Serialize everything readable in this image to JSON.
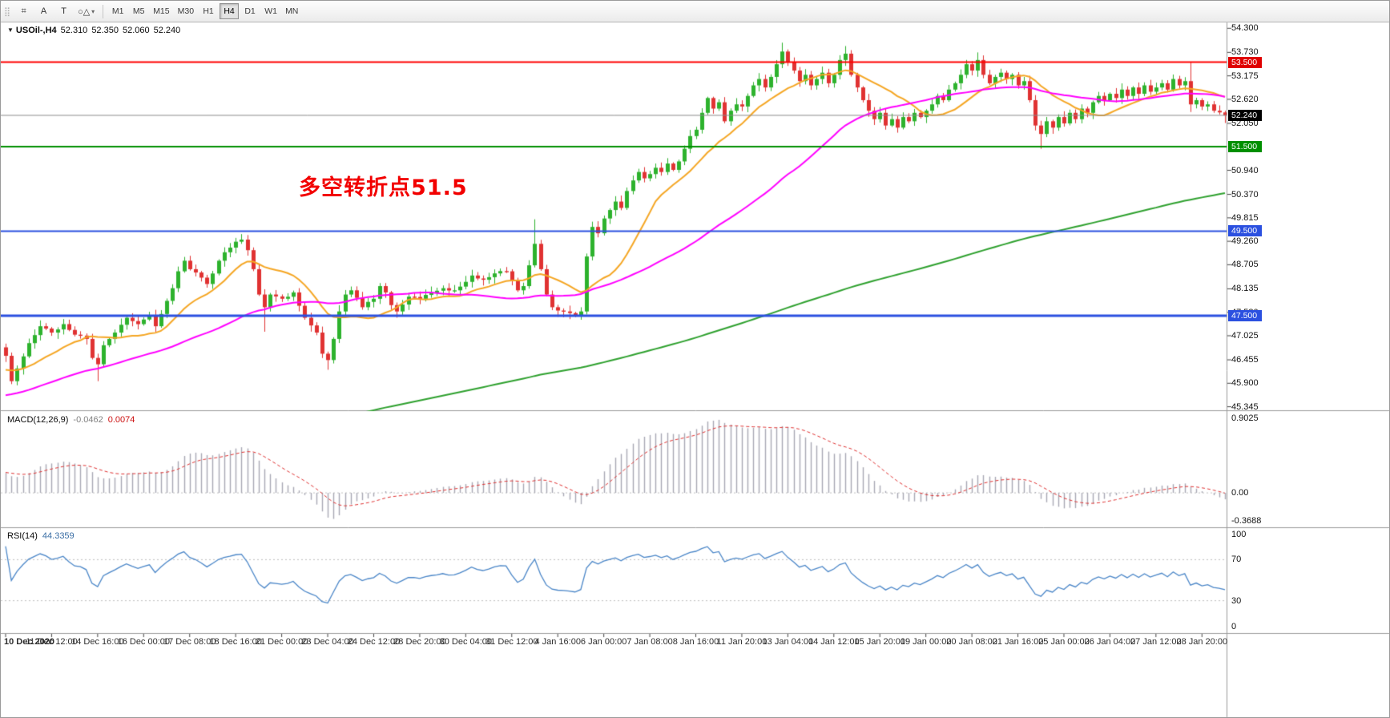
{
  "toolbar": {
    "drag_handle_glyph": "⣿",
    "buttons": [
      {
        "name": "grid-tool-button",
        "glyph": "⌗"
      },
      {
        "name": "label-tool-button",
        "glyph": "A"
      },
      {
        "name": "text-tool-button",
        "glyph": "T"
      },
      {
        "name": "shapes-tool-button",
        "glyph": "○△",
        "caret": "▾"
      }
    ],
    "timeframes": [
      "M1",
      "M5",
      "M15",
      "M30",
      "H1",
      "H4",
      "D1",
      "W1",
      "MN"
    ],
    "active_timeframe": "H4"
  },
  "chart": {
    "symbol_header": "USOil-,H4",
    "ohlc": {
      "open": "52.310",
      "high": "52.350",
      "low": "52.060",
      "close": "52.240"
    },
    "current_price": "52.240",
    "price_ticks": [
      "54.300",
      "53.730",
      "53.175",
      "52.620",
      "52.050",
      "50.940",
      "50.370",
      "49.815",
      "49.260",
      "48.705",
      "48.135",
      "47.580",
      "47.025",
      "46.455",
      "45.900",
      "45.345"
    ],
    "badges": [
      {
        "text": "53.500",
        "value": 53.5,
        "bg": "#e00000"
      },
      {
        "text": "52.240",
        "value": 52.24,
        "bg": "#000000"
      },
      {
        "text": "51.500",
        "value": 51.5,
        "bg": "#008f00"
      },
      {
        "text": "49.500",
        "value": 49.5,
        "bg": "#2b50e0"
      },
      {
        "text": "47.500",
        "value": 47.5,
        "bg": "#2b50e0"
      }
    ],
    "annotation": {
      "text": "多空转折点51.5",
      "color": "#f20000"
    }
  },
  "macd": {
    "label": "MACD(12,26,9)",
    "main_value": "-0.0462",
    "signal_value": "0.0074",
    "axis": [
      "0.9025",
      "0.00",
      "-0.3688"
    ]
  },
  "rsi": {
    "label": "RSI(14)",
    "value": "44.3359",
    "axis": [
      "100",
      "70",
      "30",
      "0"
    ],
    "levels": [
      70,
      30
    ]
  },
  "time_axis": [
    "10 Dec 2020",
    "11 Dec 12:00",
    "14 Dec 16:00",
    "16 Dec 00:00",
    "17 Dec 08:00",
    "18 Dec 16:00",
    "21 Dec 00:00",
    "23 Dec 04:00",
    "24 Dec 12:00",
    "28 Dec 20:00",
    "30 Dec 04:00",
    "31 Dec 12:00",
    "4 Jan 16:00",
    "6 Jan 00:00",
    "7 Jan 08:00",
    "8 Jan 16:00",
    "11 Jan 20:00",
    "13 Jan 04:00",
    "14 Jan 12:00",
    "15 Jan 20:00",
    "19 Jan 00:00",
    "20 Jan 08:00",
    "21 Jan 16:00",
    "25 Jan 00:00",
    "26 Jan 04:00",
    "27 Jan 12:00",
    "28 Jan 20:00"
  ],
  "palette": {
    "candle_up": "#2db22d",
    "candle_down": "#e03232",
    "price_line": "#8a8a8a",
    "macd_bar": "#a8a8b4",
    "macd_signal": "#e03030",
    "rsi_line": "#4a86c8",
    "level_dotted": "#c0c0c0"
  },
  "chart_data": {
    "type": "candlestick",
    "symbol": "USOil",
    "timeframe": "H4",
    "num_candles": 213,
    "first_open": 46.75,
    "visible_price_range": [
      45.345,
      54.3
    ],
    "current_ohlc": [
      52.31,
      52.35,
      52.06,
      52.24
    ],
    "horizontal_lines": [
      {
        "price": 53.5,
        "color": "#ff0000",
        "width": 2
      },
      {
        "price": 51.5,
        "color": "#008f00",
        "width": 2
      },
      {
        "price": 49.5,
        "color": "#2b50e0",
        "width": 2
      },
      {
        "price": 47.5,
        "color": "#2b50e0",
        "width": 3
      }
    ],
    "moving_averages": [
      {
        "period": 13,
        "color": "#f5a623"
      },
      {
        "period": 45,
        "color": "#ff00ff"
      },
      {
        "period": 200,
        "color": "#2fa12f"
      }
    ],
    "indicators": [
      {
        "name": "MACD",
        "params": [
          12,
          26,
          9
        ],
        "last_values": [
          -0.0462,
          0.0074
        ],
        "axis_range": [
          -0.3688,
          0.9025
        ]
      },
      {
        "name": "RSI",
        "params": [
          14
        ],
        "last_value": 44.3359,
        "axis_range": [
          0,
          100
        ],
        "levels": [
          30,
          70
        ]
      }
    ],
    "close_waypoints": [
      [
        0,
        46.55
      ],
      [
        1,
        45.95
      ],
      [
        2,
        46.25
      ],
      [
        4,
        46.85
      ],
      [
        6,
        47.25
      ],
      [
        8,
        47.1
      ],
      [
        10,
        47.3
      ],
      [
        12,
        47.05
      ],
      [
        14,
        46.95
      ],
      [
        15,
        46.5
      ],
      [
        16,
        46.35
      ],
      [
        17,
        46.8
      ],
      [
        19,
        47.1
      ],
      [
        21,
        47.45
      ],
      [
        23,
        47.3
      ],
      [
        25,
        47.5
      ],
      [
        26,
        47.25
      ],
      [
        28,
        47.85
      ],
      [
        29,
        48.15
      ],
      [
        30,
        48.55
      ],
      [
        31,
        48.8
      ],
      [
        32,
        48.6
      ],
      [
        34,
        48.4
      ],
      [
        35,
        48.25
      ],
      [
        37,
        48.8
      ],
      [
        38,
        49.0
      ],
      [
        40,
        49.25
      ],
      [
        41,
        49.3
      ],
      [
        42,
        49.05
      ],
      [
        43,
        48.6
      ],
      [
        44,
        48.0
      ],
      [
        45,
        47.7
      ],
      [
        46,
        48.0
      ],
      [
        48,
        47.9
      ],
      [
        50,
        48.05
      ],
      [
        52,
        47.45
      ],
      [
        54,
        47.1
      ],
      [
        55,
        46.6
      ],
      [
        56,
        46.45
      ],
      [
        57,
        46.95
      ],
      [
        58,
        47.6
      ],
      [
        59,
        48.0
      ],
      [
        60,
        48.1
      ],
      [
        62,
        47.7
      ],
      [
        64,
        47.9
      ],
      [
        65,
        48.2
      ],
      [
        66,
        48.05
      ],
      [
        67,
        47.75
      ],
      [
        68,
        47.6
      ],
      [
        70,
        47.95
      ],
      [
        72,
        47.9
      ],
      [
        74,
        48.05
      ],
      [
        76,
        48.15
      ],
      [
        78,
        48.1
      ],
      [
        80,
        48.3
      ],
      [
        81,
        48.45
      ],
      [
        83,
        48.35
      ],
      [
        85,
        48.5
      ],
      [
        87,
        48.55
      ],
      [
        89,
        48.1
      ],
      [
        90,
        48.2
      ],
      [
        92,
        49.2
      ],
      [
        93,
        48.6
      ],
      [
        94,
        48.0
      ],
      [
        95,
        47.7
      ],
      [
        97,
        47.6
      ],
      [
        99,
        47.5
      ],
      [
        100,
        47.6
      ],
      [
        101,
        48.9
      ],
      [
        102,
        49.6
      ],
      [
        103,
        49.45
      ],
      [
        104,
        49.8
      ],
      [
        105,
        50.0
      ],
      [
        106,
        50.2
      ],
      [
        107,
        50.05
      ],
      [
        108,
        50.45
      ],
      [
        109,
        50.7
      ],
      [
        110,
        50.9
      ],
      [
        111,
        50.75
      ],
      [
        112,
        50.85
      ],
      [
        113,
        51.0
      ],
      [
        114,
        50.9
      ],
      [
        115,
        51.1
      ],
      [
        116,
        50.95
      ],
      [
        117,
        51.15
      ],
      [
        118,
        51.45
      ],
      [
        119,
        51.75
      ],
      [
        120,
        51.9
      ],
      [
        121,
        52.3
      ],
      [
        122,
        52.65
      ],
      [
        123,
        52.4
      ],
      [
        124,
        52.55
      ],
      [
        125,
        52.1
      ],
      [
        126,
        52.35
      ],
      [
        127,
        52.5
      ],
      [
        128,
        52.45
      ],
      [
        129,
        52.7
      ],
      [
        130,
        52.95
      ],
      [
        131,
        53.1
      ],
      [
        132,
        52.9
      ],
      [
        133,
        53.15
      ],
      [
        134,
        53.45
      ],
      [
        135,
        53.75
      ],
      [
        136,
        53.5
      ],
      [
        137,
        53.3
      ],
      [
        138,
        53.05
      ],
      [
        139,
        53.2
      ],
      [
        140,
        52.95
      ],
      [
        141,
        53.1
      ],
      [
        142,
        53.25
      ],
      [
        143,
        53.0
      ],
      [
        144,
        53.2
      ],
      [
        145,
        53.55
      ],
      [
        146,
        53.7
      ],
      [
        147,
        53.2
      ],
      [
        148,
        52.9
      ],
      [
        149,
        52.6
      ],
      [
        150,
        52.35
      ],
      [
        151,
        52.15
      ],
      [
        152,
        52.3
      ],
      [
        153,
        52.0
      ],
      [
        154,
        52.15
      ],
      [
        155,
        51.95
      ],
      [
        156,
        52.2
      ],
      [
        157,
        52.1
      ],
      [
        158,
        52.3
      ],
      [
        159,
        52.2
      ],
      [
        160,
        52.35
      ],
      [
        161,
        52.5
      ],
      [
        162,
        52.7
      ],
      [
        163,
        52.6
      ],
      [
        164,
        52.85
      ],
      [
        165,
        53.0
      ],
      [
        166,
        53.2
      ],
      [
        167,
        53.45
      ],
      [
        168,
        53.3
      ],
      [
        169,
        53.55
      ],
      [
        170,
        53.2
      ],
      [
        171,
        53.0
      ],
      [
        172,
        53.15
      ],
      [
        173,
        53.25
      ],
      [
        174,
        53.1
      ],
      [
        175,
        53.2
      ],
      [
        176,
        52.95
      ],
      [
        177,
        53.05
      ],
      [
        178,
        52.6
      ],
      [
        179,
        52.0
      ],
      [
        180,
        51.8
      ],
      [
        181,
        52.1
      ],
      [
        182,
        51.95
      ],
      [
        183,
        52.2
      ],
      [
        184,
        52.05
      ],
      [
        185,
        52.3
      ],
      [
        186,
        52.15
      ],
      [
        187,
        52.4
      ],
      [
        188,
        52.3
      ],
      [
        189,
        52.55
      ],
      [
        190,
        52.7
      ],
      [
        191,
        52.6
      ],
      [
        192,
        52.75
      ],
      [
        193,
        52.65
      ],
      [
        194,
        52.85
      ],
      [
        195,
        52.7
      ],
      [
        196,
        52.9
      ],
      [
        197,
        52.75
      ],
      [
        198,
        52.95
      ],
      [
        199,
        52.8
      ],
      [
        200,
        52.9
      ],
      [
        201,
        53.0
      ],
      [
        202,
        52.85
      ],
      [
        203,
        53.1
      ],
      [
        204,
        52.95
      ],
      [
        205,
        53.05
      ],
      [
        206,
        52.5
      ],
      [
        207,
        52.6
      ],
      [
        208,
        52.45
      ],
      [
        209,
        52.5
      ],
      [
        210,
        52.35
      ],
      [
        211,
        52.31
      ],
      [
        212,
        52.24
      ]
    ],
    "wick_overrides": {
      "1": {
        "low": 45.88
      },
      "16": {
        "low": 45.95
      },
      "45": {
        "low": 47.12
      },
      "56": {
        "low": 46.22
      },
      "92": {
        "high": 49.78
      },
      "135": {
        "high": 53.96
      },
      "146": {
        "high": 53.88
      },
      "169": {
        "high": 53.73
      },
      "180": {
        "low": 51.45
      },
      "206": {
        "high": 53.5,
        "low": 52.32
      }
    }
  }
}
